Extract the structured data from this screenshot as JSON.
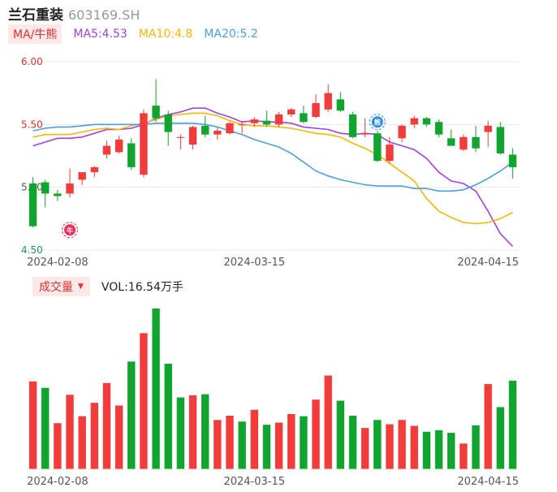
{
  "header": {
    "name": "兰石重装",
    "code": "603169.SH"
  },
  "ma_legend": {
    "tab_label": "MA/牛熊",
    "items": [
      {
        "label": "MA5:4.53",
        "color": "#a33ee8"
      },
      {
        "label": "MA10:4.8",
        "color": "#f5b800"
      },
      {
        "label": "MA20:5.2",
        "color": "#4a9ee8"
      }
    ]
  },
  "volume_header": {
    "tab_label": "成交量",
    "caret": "▼",
    "text": "VOL:16.54万手"
  },
  "colors": {
    "up": "#f23b3b",
    "down": "#0fa52e",
    "grid": "#e8e8e8",
    "axis_text": "#555555",
    "ytick_red": "#e03030",
    "ytick_green": "#18a050"
  },
  "markers": [
    {
      "symbol": "牛",
      "index": 3,
      "price": 4.66,
      "color": "#f0305a"
    },
    {
      "symbol": "熊",
      "index": 28,
      "price": 5.52,
      "color": "#2f8fe8"
    }
  ],
  "chart_data": [
    {
      "type": "candlestick",
      "title": "",
      "y_ticks": [
        "6.00",
        "5.50",
        "5.00",
        "4.50"
      ],
      "ylim": [
        4.5,
        6.0
      ],
      "x_tick_labels": [
        {
          "label": "2024-02-08",
          "index": 2
        },
        {
          "label": "2024-03-15",
          "index": 18
        },
        {
          "label": "2024-04-15",
          "index": 37
        }
      ],
      "candles": [
        {
          "o": 5.03,
          "h": 5.08,
          "l": 4.68,
          "c": 4.69
        },
        {
          "o": 5.04,
          "h": 5.06,
          "l": 4.84,
          "c": 4.95
        },
        {
          "o": 4.95,
          "h": 4.98,
          "l": 4.89,
          "c": 4.93
        },
        {
          "o": 4.95,
          "h": 5.15,
          "l": 4.92,
          "c": 5.03
        },
        {
          "o": 5.06,
          "h": 5.12,
          "l": 5.02,
          "c": 5.12
        },
        {
          "o": 5.12,
          "h": 5.17,
          "l": 5.08,
          "c": 5.16
        },
        {
          "o": 5.26,
          "h": 5.37,
          "l": 5.23,
          "c": 5.33
        },
        {
          "o": 5.28,
          "h": 5.41,
          "l": 5.27,
          "c": 5.38
        },
        {
          "o": 5.35,
          "h": 5.39,
          "l": 5.14,
          "c": 5.16
        },
        {
          "o": 5.1,
          "h": 5.62,
          "l": 5.08,
          "c": 5.59
        },
        {
          "o": 5.65,
          "h": 5.86,
          "l": 5.52,
          "c": 5.55
        },
        {
          "o": 5.58,
          "h": 5.61,
          "l": 5.33,
          "c": 5.44
        },
        {
          "o": 5.4,
          "h": 5.42,
          "l": 5.3,
          "c": 5.4
        },
        {
          "o": 5.34,
          "h": 5.49,
          "l": 5.3,
          "c": 5.48
        },
        {
          "o": 5.49,
          "h": 5.57,
          "l": 5.4,
          "c": 5.42
        },
        {
          "o": 5.42,
          "h": 5.48,
          "l": 5.38,
          "c": 5.45
        },
        {
          "o": 5.43,
          "h": 5.52,
          "l": 5.42,
          "c": 5.51
        },
        {
          "o": 5.5,
          "h": 5.53,
          "l": 5.43,
          "c": 5.5
        },
        {
          "o": 5.51,
          "h": 5.56,
          "l": 5.48,
          "c": 5.54
        },
        {
          "o": 5.53,
          "h": 5.61,
          "l": 5.48,
          "c": 5.5
        },
        {
          "o": 5.5,
          "h": 5.6,
          "l": 5.48,
          "c": 5.58
        },
        {
          "o": 5.58,
          "h": 5.63,
          "l": 5.56,
          "c": 5.62
        },
        {
          "o": 5.59,
          "h": 5.65,
          "l": 5.51,
          "c": 5.52
        },
        {
          "o": 5.56,
          "h": 5.74,
          "l": 5.55,
          "c": 5.67
        },
        {
          "o": 5.62,
          "h": 5.82,
          "l": 5.6,
          "c": 5.75
        },
        {
          "o": 5.7,
          "h": 5.76,
          "l": 5.6,
          "c": 5.61
        },
        {
          "o": 5.58,
          "h": 5.6,
          "l": 5.39,
          "c": 5.4
        },
        {
          "o": 5.42,
          "h": 5.55,
          "l": 5.4,
          "c": 5.43
        },
        {
          "o": 5.43,
          "h": 5.45,
          "l": 5.2,
          "c": 5.21
        },
        {
          "o": 5.21,
          "h": 5.4,
          "l": 5.19,
          "c": 5.34
        },
        {
          "o": 5.39,
          "h": 5.5,
          "l": 5.36,
          "c": 5.49
        },
        {
          "o": 5.5,
          "h": 5.57,
          "l": 5.47,
          "c": 5.55
        },
        {
          "o": 5.55,
          "h": 5.56,
          "l": 5.48,
          "c": 5.5
        },
        {
          "o": 5.52,
          "h": 5.54,
          "l": 5.4,
          "c": 5.42
        },
        {
          "o": 5.39,
          "h": 5.46,
          "l": 5.34,
          "c": 5.33
        },
        {
          "o": 5.3,
          "h": 5.42,
          "l": 5.29,
          "c": 5.4
        },
        {
          "o": 5.4,
          "h": 5.49,
          "l": 5.28,
          "c": 5.31
        },
        {
          "o": 5.44,
          "h": 5.53,
          "l": 5.32,
          "c": 5.49
        },
        {
          "o": 5.48,
          "h": 5.52,
          "l": 5.26,
          "c": 5.27
        },
        {
          "o": 5.26,
          "h": 5.31,
          "l": 5.07,
          "c": 5.16
        }
      ],
      "series": [
        {
          "name": "MA5",
          "color": "#a33ee8",
          "values": [
            5.33,
            5.36,
            5.39,
            5.39,
            5.4,
            5.43,
            5.46,
            5.46,
            5.47,
            5.5,
            5.55,
            5.58,
            5.6,
            5.63,
            5.63,
            5.59,
            5.56,
            5.52,
            5.53,
            5.52,
            5.52,
            5.51,
            5.48,
            5.47,
            5.46,
            5.43,
            5.42,
            5.43,
            5.42,
            5.36,
            5.33,
            5.3,
            5.23,
            5.12,
            5.05,
            5.03,
            4.97,
            4.81,
            4.63,
            4.53
          ]
        },
        {
          "name": "MA10",
          "color": "#f5b800",
          "values": [
            5.4,
            5.42,
            5.42,
            5.42,
            5.44,
            5.46,
            5.47,
            5.46,
            5.49,
            5.51,
            5.54,
            5.57,
            5.58,
            5.59,
            5.59,
            5.57,
            5.53,
            5.5,
            5.49,
            5.49,
            5.48,
            5.47,
            5.45,
            5.43,
            5.42,
            5.4,
            5.35,
            5.31,
            5.26,
            5.19,
            5.12,
            5.05,
            4.91,
            4.81,
            4.76,
            4.72,
            4.71,
            4.72,
            4.75,
            4.8
          ]
        },
        {
          "name": "MA20",
          "color": "#4a9ee8",
          "values": [
            5.45,
            5.47,
            5.48,
            5.48,
            5.49,
            5.5,
            5.5,
            5.5,
            5.5,
            5.5,
            5.51,
            5.51,
            5.51,
            5.51,
            5.5,
            5.48,
            5.45,
            5.42,
            5.38,
            5.35,
            5.32,
            5.27,
            5.2,
            5.13,
            5.09,
            5.06,
            5.04,
            5.02,
            5.01,
            5.01,
            5.01,
            4.99,
            4.99,
            4.97,
            4.97,
            4.98,
            5.02,
            5.07,
            5.13,
            5.2
          ]
        }
      ]
    },
    {
      "type": "bar",
      "title": "",
      "ylabel": "VOL",
      "x_tick_labels": [
        {
          "label": "2024-02-08",
          "index": 2
        },
        {
          "label": "2024-03-15",
          "index": 18
        },
        {
          "label": "2024-04-15",
          "index": 37
        }
      ],
      "values": [
        16.4,
        15.2,
        8.6,
        13.9,
        9.9,
        12.4,
        16.1,
        11.9,
        20.1,
        25.4,
        30.0,
        19.7,
        13.4,
        13.8,
        14.0,
        9.2,
        10.0,
        8.9,
        11.1,
        8.3,
        8.7,
        10.3,
        9.9,
        13.0,
        17.5,
        12.8,
        10.0,
        7.7,
        9.2,
        8.4,
        9.2,
        8.1,
        7.0,
        7.3,
        6.8,
        4.8,
        8.2,
        15.9,
        11.6,
        16.54
      ],
      "up": [
        1,
        0,
        1,
        1,
        1,
        1,
        1,
        1,
        0,
        1,
        0,
        0,
        0,
        1,
        0,
        1,
        1,
        0,
        1,
        0,
        1,
        1,
        0,
        1,
        1,
        0,
        0,
        1,
        0,
        1,
        1,
        1,
        0,
        0,
        0,
        1,
        0,
        1,
        0,
        0
      ]
    }
  ]
}
